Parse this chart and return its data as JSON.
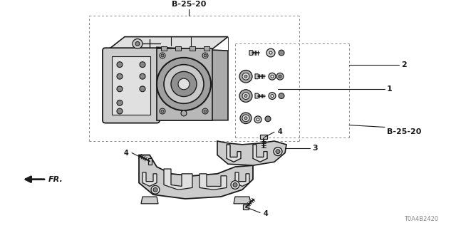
{
  "bg_color": "#ffffff",
  "dark": "#1a1a1a",
  "gray1": "#888888",
  "gray2": "#aaaaaa",
  "gray3": "#cccccc",
  "gray4": "#e0e0e0",
  "watermark": "T0A4B2420",
  "b2520_top": "B-25-20",
  "b2520_right": "B-25-20",
  "fig_w": 6.4,
  "fig_h": 3.2,
  "dpi": 100
}
